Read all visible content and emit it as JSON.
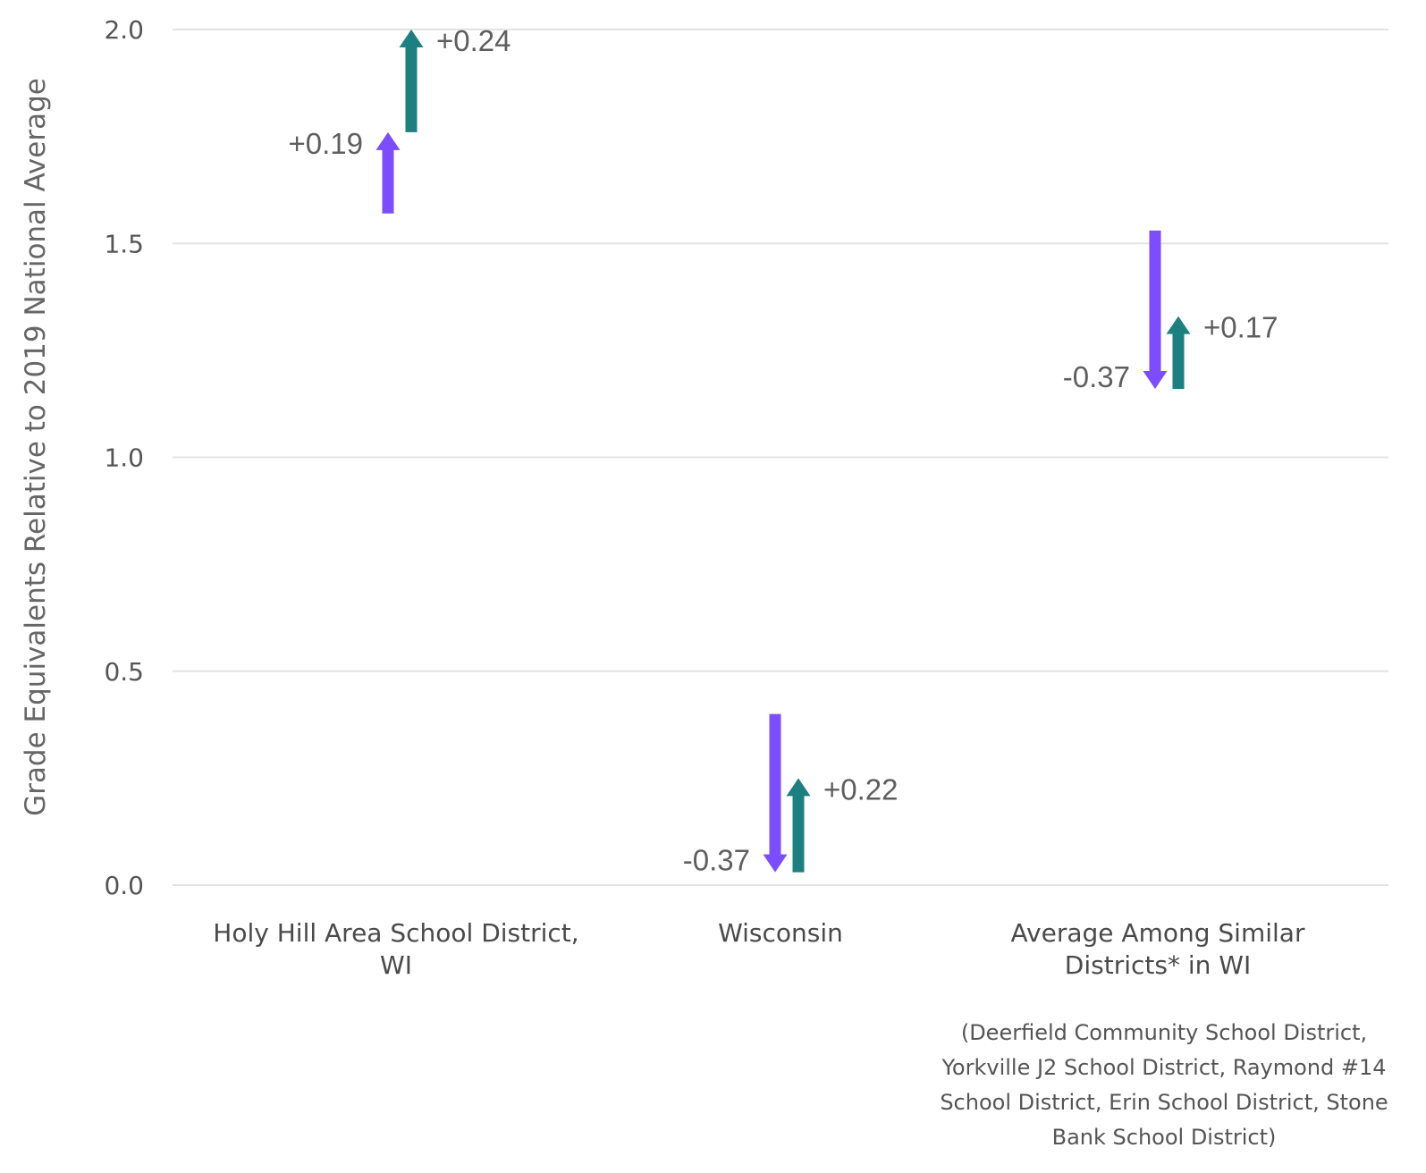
{
  "chart_data": {
    "type": "arrow",
    "title": "",
    "ylabel": "Grade Equivalents Relative to 2019 National Average",
    "ylim": [
      0,
      2.0
    ],
    "yticks": [
      "0.0",
      "0.5",
      "1.0",
      "1.5",
      "2.0"
    ],
    "grid": true,
    "categories": [
      {
        "lines": [
          "Holy Hill Area School District,",
          "WI"
        ]
      },
      {
        "lines": [
          "Wisconsin"
        ]
      },
      {
        "lines": [
          "Average Among Similar",
          "Districts* in WI"
        ]
      }
    ],
    "series": [
      {
        "color": "#7b4dff",
        "arrows": [
          {
            "start": 1.57,
            "end": 1.76,
            "label": "+0.19"
          },
          {
            "start": 0.4,
            "end": 0.03,
            "label": "-0.37"
          },
          {
            "start": 1.53,
            "end": 1.16,
            "label": "-0.37"
          }
        ]
      },
      {
        "color": "#1d8080",
        "arrows": [
          {
            "start": 1.76,
            "end": 2.0,
            "label": "+0.24"
          },
          {
            "start": 0.03,
            "end": 0.25,
            "label": "+0.22"
          },
          {
            "start": 1.16,
            "end": 1.33,
            "label": "+0.17"
          }
        ]
      }
    ],
    "footnote": [
      "(Deerfield Community School District,",
      "Yorkville J2 School District, Raymond #14",
      "School District, Erin School District, Stone",
      "Bank School District)"
    ]
  }
}
